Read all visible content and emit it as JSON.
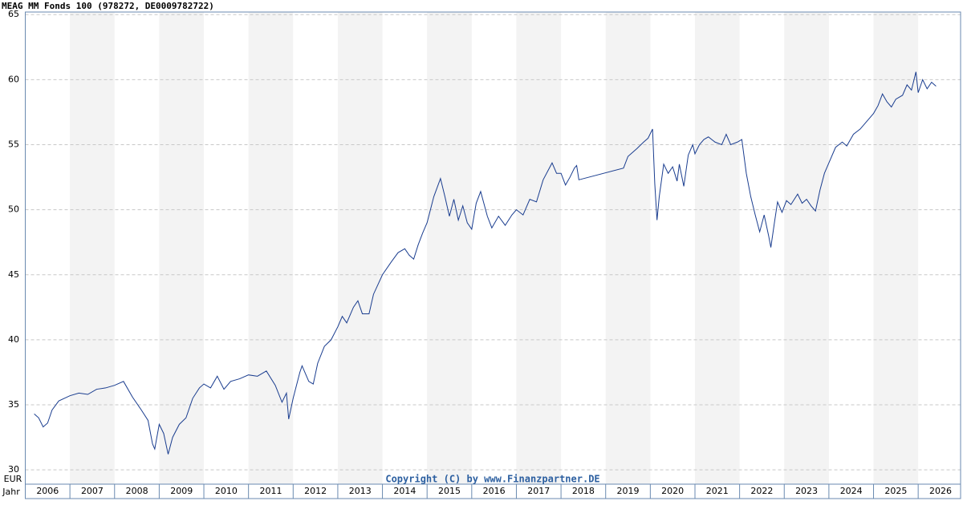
{
  "chart_data": {
    "type": "line",
    "title": "MEAG MM Fonds 100 (978272, DE0009782722)",
    "x_axis_label": "Jahr",
    "y_axis_label": "EUR",
    "copyright": "Copyright (C) by www.Finanzpartner.DE",
    "color": "#1a3d8f",
    "band_color": "#f3f3f3",
    "grid": true,
    "xlim": [
      2006,
      2026.95
    ],
    "ylim": [
      28.9,
      65.2
    ],
    "yticks": [
      30,
      35,
      40,
      45,
      50,
      55,
      60,
      65
    ],
    "xticks": [
      {
        "value": 2006.5,
        "label": "2006"
      },
      {
        "value": 2007.5,
        "label": "2007"
      },
      {
        "value": 2008.5,
        "label": "2008"
      },
      {
        "value": 2009.5,
        "label": "2009"
      },
      {
        "value": 2010.5,
        "label": "2010"
      },
      {
        "value": 2011.5,
        "label": "2011"
      },
      {
        "value": 2012.5,
        "label": "2012"
      },
      {
        "value": 2013.5,
        "label": "2013"
      },
      {
        "value": 2014.5,
        "label": "2014"
      },
      {
        "value": 2015.5,
        "label": "2015"
      },
      {
        "value": 2016.5,
        "label": "2016"
      },
      {
        "value": 2017.5,
        "label": "2017"
      },
      {
        "value": 2018.5,
        "label": "2018"
      },
      {
        "value": 2019.5,
        "label": "2019"
      },
      {
        "value": 2020.5,
        "label": "2020"
      },
      {
        "value": 2021.5,
        "label": "2021"
      },
      {
        "value": 2022.5,
        "label": "2022"
      },
      {
        "value": 2023.5,
        "label": "2023"
      },
      {
        "value": 2024.5,
        "label": "2024"
      },
      {
        "value": 2025.5,
        "label": "2025"
      },
      {
        "value": 2026.5,
        "label": "2026"
      }
    ],
    "x": [
      2006.2,
      2006.3,
      2006.4,
      2006.5,
      2006.6,
      2006.75,
      2007.0,
      2007.2,
      2007.4,
      2007.6,
      2007.8,
      2008.0,
      2008.2,
      2008.4,
      2008.6,
      2008.75,
      2008.85,
      2008.9,
      2009.0,
      2009.1,
      2009.2,
      2009.3,
      2009.45,
      2009.6,
      2009.75,
      2009.9,
      2010.0,
      2010.15,
      2010.3,
      2010.45,
      2010.6,
      2010.8,
      2011.0,
      2011.2,
      2011.4,
      2011.6,
      2011.75,
      2011.85,
      2011.9,
      2012.0,
      2012.15,
      2012.2,
      2012.35,
      2012.45,
      2012.55,
      2012.7,
      2012.85,
      2013.0,
      2013.1,
      2013.2,
      2013.35,
      2013.45,
      2013.55,
      2013.7,
      2013.8,
      2014.0,
      2014.2,
      2014.35,
      2014.5,
      2014.6,
      2014.7,
      2014.8,
      2014.9,
      2015.0,
      2015.15,
      2015.3,
      2015.4,
      2015.5,
      2015.6,
      2015.7,
      2015.8,
      2015.9,
      2016.0,
      2016.1,
      2016.2,
      2016.35,
      2016.45,
      2016.6,
      2016.75,
      2016.9,
      2017.0,
      2017.15,
      2017.3,
      2017.45,
      2017.6,
      2017.8,
      2017.9,
      2018.0,
      2018.1,
      2018.2,
      2018.3,
      2018.35,
      2018.4,
      2019.4,
      2019.5,
      2019.7,
      2019.85,
      2019.95,
      2020.05,
      2020.1,
      2020.15,
      2020.2,
      2020.3,
      2020.4,
      2020.5,
      2020.6,
      2020.65,
      2020.75,
      2020.85,
      2020.95,
      2021.0,
      2021.1,
      2021.2,
      2021.3,
      2021.45,
      2021.6,
      2021.7,
      2021.8,
      2021.95,
      2022.05,
      2022.15,
      2022.25,
      2022.35,
      2022.45,
      2022.55,
      2022.65,
      2022.7,
      2022.78,
      2022.85,
      2022.95,
      2023.05,
      2023.15,
      2023.3,
      2023.4,
      2023.5,
      2023.6,
      2023.7,
      2023.8,
      2023.9,
      2024.0,
      2024.15,
      2024.3,
      2024.4,
      2024.55,
      2024.7,
      2024.85,
      2025.0,
      2025.1,
      2025.2,
      2025.3,
      2025.4,
      2025.5,
      2025.65,
      2025.75,
      2025.85,
      2025.95,
      2026.0,
      2026.1,
      2026.2,
      2026.3,
      2026.4
    ],
    "values": [
      34.3,
      34.0,
      33.3,
      33.6,
      34.6,
      35.3,
      35.7,
      35.9,
      35.8,
      36.2,
      36.3,
      36.5,
      36.8,
      35.6,
      34.6,
      33.8,
      32.0,
      31.6,
      33.5,
      32.8,
      31.2,
      32.5,
      33.5,
      34.0,
      35.5,
      36.3,
      36.6,
      36.3,
      37.2,
      36.2,
      36.8,
      37.0,
      37.3,
      37.2,
      37.6,
      36.5,
      35.2,
      35.9,
      33.9,
      35.5,
      37.5,
      38.0,
      36.8,
      36.6,
      38.2,
      39.5,
      40.0,
      41.0,
      41.8,
      41.3,
      42.5,
      43.0,
      42.0,
      42.0,
      43.5,
      45.0,
      46.0,
      46.7,
      47.0,
      46.5,
      46.2,
      47.3,
      48.2,
      49.0,
      51.0,
      52.4,
      51.0,
      49.5,
      50.8,
      49.2,
      50.3,
      49.0,
      48.5,
      50.5,
      51.4,
      49.5,
      48.6,
      49.5,
      48.8,
      49.6,
      50.0,
      49.6,
      50.8,
      50.6,
      52.3,
      53.6,
      52.8,
      52.8,
      51.9,
      52.5,
      53.2,
      53.4,
      52.3,
      53.2,
      54.1,
      54.7,
      55.2,
      55.5,
      56.2,
      52.0,
      49.2,
      51.0,
      53.5,
      52.8,
      53.3,
      52.2,
      53.5,
      51.8,
      54.2,
      55.0,
      54.3,
      55.0,
      55.4,
      55.6,
      55.2,
      55.0,
      55.8,
      55.0,
      55.2,
      55.4,
      52.8,
      51.0,
      49.6,
      48.3,
      49.6,
      48.0,
      47.1,
      49.0,
      50.6,
      49.8,
      50.7,
      50.4,
      51.2,
      50.5,
      50.8,
      50.3,
      49.9,
      51.5,
      52.8,
      53.6,
      54.8,
      55.2,
      54.9,
      55.8,
      56.2,
      56.8,
      57.4,
      58.0,
      58.9,
      58.3,
      57.9,
      58.5,
      58.8,
      59.6,
      59.2,
      60.6,
      59.0,
      60.0,
      59.3,
      59.8,
      59.5
    ]
  }
}
